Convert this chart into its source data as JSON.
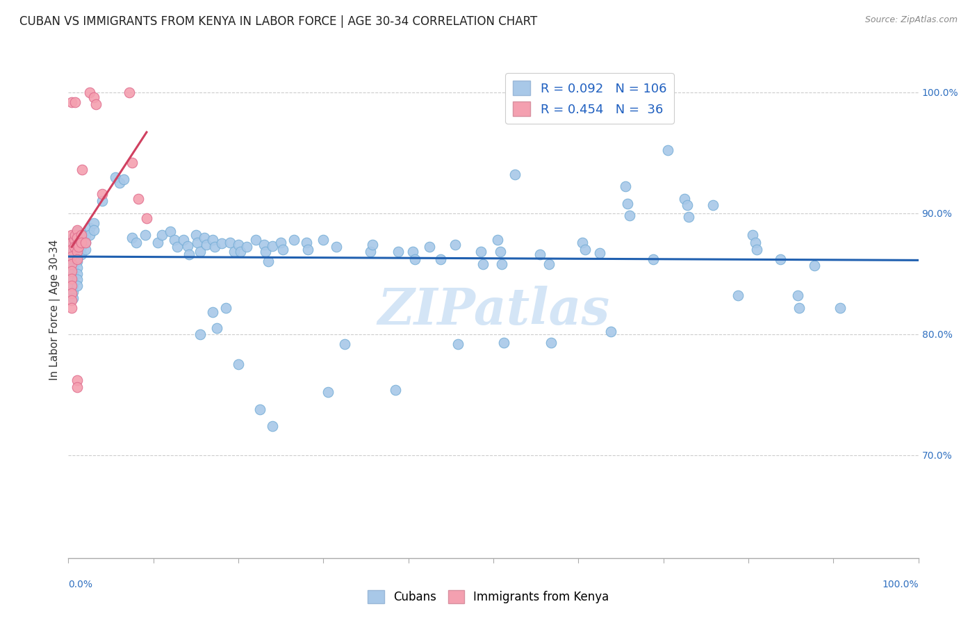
{
  "title": "CUBAN VS IMMIGRANTS FROM KENYA IN LABOR FORCE | AGE 30-34 CORRELATION CHART",
  "source": "Source: ZipAtlas.com",
  "ylabel": "In Labor Force | Age 30-34",
  "ylabel_ticks": [
    "70.0%",
    "80.0%",
    "90.0%",
    "100.0%"
  ],
  "ylabel_tick_vals": [
    0.7,
    0.8,
    0.9,
    1.0
  ],
  "xlim": [
    0.0,
    1.0
  ],
  "ylim": [
    0.615,
    1.025
  ],
  "blue_color": "#a8c8e8",
  "pink_color": "#f4a0b0",
  "blue_edge_color": "#7ab0d8",
  "pink_edge_color": "#e07090",
  "blue_line_color": "#2060b0",
  "pink_line_color": "#d04060",
  "watermark": "ZIPatlas",
  "legend_label_cubans": "Cubans",
  "legend_label_kenya": "Immigrants from Kenya",
  "blue_dots": [
    [
      0.005,
      0.88
    ],
    [
      0.005,
      0.875
    ],
    [
      0.005,
      0.87
    ],
    [
      0.005,
      0.865
    ],
    [
      0.005,
      0.86
    ],
    [
      0.005,
      0.855
    ],
    [
      0.005,
      0.85
    ],
    [
      0.005,
      0.845
    ],
    [
      0.005,
      0.84
    ],
    [
      0.005,
      0.835
    ],
    [
      0.005,
      0.83
    ],
    [
      0.01,
      0.885
    ],
    [
      0.01,
      0.88
    ],
    [
      0.01,
      0.875
    ],
    [
      0.01,
      0.87
    ],
    [
      0.01,
      0.865
    ],
    [
      0.01,
      0.86
    ],
    [
      0.01,
      0.855
    ],
    [
      0.01,
      0.85
    ],
    [
      0.01,
      0.845
    ],
    [
      0.01,
      0.84
    ],
    [
      0.015,
      0.878
    ],
    [
      0.015,
      0.872
    ],
    [
      0.015,
      0.866
    ],
    [
      0.02,
      0.882
    ],
    [
      0.02,
      0.876
    ],
    [
      0.02,
      0.87
    ],
    [
      0.025,
      0.888
    ],
    [
      0.025,
      0.882
    ],
    [
      0.03,
      0.892
    ],
    [
      0.03,
      0.886
    ],
    [
      0.04,
      0.91
    ],
    [
      0.055,
      0.93
    ],
    [
      0.06,
      0.925
    ],
    [
      0.065,
      0.928
    ],
    [
      0.075,
      0.88
    ],
    [
      0.08,
      0.876
    ],
    [
      0.09,
      0.882
    ],
    [
      0.105,
      0.876
    ],
    [
      0.11,
      0.882
    ],
    [
      0.12,
      0.885
    ],
    [
      0.125,
      0.878
    ],
    [
      0.128,
      0.872
    ],
    [
      0.135,
      0.878
    ],
    [
      0.14,
      0.873
    ],
    [
      0.142,
      0.866
    ],
    [
      0.15,
      0.882
    ],
    [
      0.152,
      0.876
    ],
    [
      0.155,
      0.868
    ],
    [
      0.16,
      0.88
    ],
    [
      0.162,
      0.874
    ],
    [
      0.17,
      0.878
    ],
    [
      0.172,
      0.872
    ],
    [
      0.18,
      0.875
    ],
    [
      0.19,
      0.876
    ],
    [
      0.195,
      0.868
    ],
    [
      0.2,
      0.874
    ],
    [
      0.202,
      0.868
    ],
    [
      0.21,
      0.872
    ],
    [
      0.22,
      0.878
    ],
    [
      0.23,
      0.874
    ],
    [
      0.232,
      0.868
    ],
    [
      0.235,
      0.86
    ],
    [
      0.24,
      0.873
    ],
    [
      0.25,
      0.876
    ],
    [
      0.252,
      0.87
    ],
    [
      0.265,
      0.878
    ],
    [
      0.28,
      0.876
    ],
    [
      0.282,
      0.87
    ],
    [
      0.3,
      0.878
    ],
    [
      0.315,
      0.872
    ],
    [
      0.155,
      0.8
    ],
    [
      0.17,
      0.818
    ],
    [
      0.175,
      0.805
    ],
    [
      0.185,
      0.822
    ],
    [
      0.2,
      0.775
    ],
    [
      0.225,
      0.738
    ],
    [
      0.24,
      0.724
    ],
    [
      0.305,
      0.752
    ],
    [
      0.325,
      0.792
    ],
    [
      0.355,
      0.868
    ],
    [
      0.358,
      0.874
    ],
    [
      0.385,
      0.754
    ],
    [
      0.388,
      0.868
    ],
    [
      0.405,
      0.868
    ],
    [
      0.408,
      0.862
    ],
    [
      0.425,
      0.872
    ],
    [
      0.438,
      0.862
    ],
    [
      0.455,
      0.874
    ],
    [
      0.458,
      0.792
    ],
    [
      0.485,
      0.868
    ],
    [
      0.488,
      0.858
    ],
    [
      0.505,
      0.878
    ],
    [
      0.508,
      0.868
    ],
    [
      0.51,
      0.858
    ],
    [
      0.512,
      0.793
    ],
    [
      0.525,
      0.932
    ],
    [
      0.555,
      0.866
    ],
    [
      0.565,
      0.858
    ],
    [
      0.568,
      0.793
    ],
    [
      0.605,
      0.876
    ],
    [
      0.608,
      0.87
    ],
    [
      0.625,
      0.867
    ],
    [
      0.638,
      0.802
    ],
    [
      0.655,
      0.922
    ],
    [
      0.658,
      0.908
    ],
    [
      0.66,
      0.898
    ],
    [
      0.688,
      0.862
    ],
    [
      0.705,
      0.952
    ],
    [
      0.725,
      0.912
    ],
    [
      0.728,
      0.907
    ],
    [
      0.73,
      0.897
    ],
    [
      0.758,
      0.907
    ],
    [
      0.788,
      0.832
    ],
    [
      0.805,
      0.882
    ],
    [
      0.808,
      0.876
    ],
    [
      0.81,
      0.87
    ],
    [
      0.838,
      0.862
    ],
    [
      0.858,
      0.832
    ],
    [
      0.86,
      0.822
    ],
    [
      0.878,
      0.857
    ],
    [
      0.908,
      0.822
    ]
  ],
  "pink_dots": [
    [
      0.004,
      0.992
    ],
    [
      0.008,
      0.992
    ],
    [
      0.004,
      0.882
    ],
    [
      0.004,
      0.876
    ],
    [
      0.004,
      0.87
    ],
    [
      0.004,
      0.864
    ],
    [
      0.004,
      0.858
    ],
    [
      0.004,
      0.852
    ],
    [
      0.004,
      0.846
    ],
    [
      0.004,
      0.84
    ],
    [
      0.004,
      0.834
    ],
    [
      0.004,
      0.828
    ],
    [
      0.004,
      0.822
    ],
    [
      0.007,
      0.878
    ],
    [
      0.007,
      0.872
    ],
    [
      0.008,
      0.882
    ],
    [
      0.01,
      0.886
    ],
    [
      0.01,
      0.88
    ],
    [
      0.01,
      0.874
    ],
    [
      0.01,
      0.868
    ],
    [
      0.01,
      0.862
    ],
    [
      0.01,
      0.762
    ],
    [
      0.01,
      0.756
    ],
    [
      0.012,
      0.872
    ],
    [
      0.015,
      0.882
    ],
    [
      0.015,
      0.876
    ],
    [
      0.016,
      0.936
    ],
    [
      0.02,
      0.876
    ],
    [
      0.025,
      1.0
    ],
    [
      0.03,
      0.996
    ],
    [
      0.032,
      0.99
    ],
    [
      0.04,
      0.916
    ],
    [
      0.072,
      1.0
    ],
    [
      0.075,
      0.942
    ],
    [
      0.082,
      0.912
    ],
    [
      0.092,
      0.896
    ]
  ]
}
